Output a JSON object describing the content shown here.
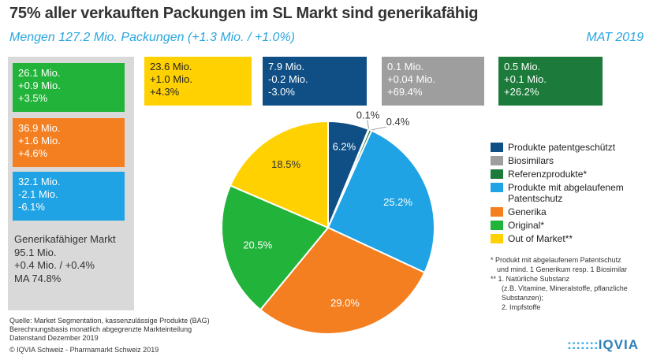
{
  "header": {
    "title": "75% aller verkauften Packungen im SL Markt sind generikafähig",
    "subtitle": "Mengen 127.2 Mio. Packungen (+1.3 Mio. / +1.0%)",
    "period": "MAT 2019"
  },
  "side_boxes": [
    {
      "lines": [
        "26.1 Mio.",
        "+0.9 Mio.",
        "+3.5%"
      ],
      "color": "#22b33a"
    },
    {
      "lines": [
        "36.9 Mio.",
        "+1.6 Mio.",
        "+4.6%"
      ],
      "color": "#f47f20"
    },
    {
      "lines": [
        "32.1 Mio.",
        "-2.1 Mio.",
        "-6.1%"
      ],
      "color": "#1fa3e4"
    }
  ],
  "generic_market": {
    "lines": [
      "Generikafähiger Markt",
      "95.1 Mio.",
      "+0.4 Mio. / +0.4%",
      "MA 74.8%"
    ]
  },
  "top_boxes": [
    {
      "lines": [
        "23.6 Mio.",
        "+1.0 Mio.",
        "+4.3%"
      ],
      "color": "#ffd100"
    },
    {
      "lines": [
        "7.9 Mio.",
        "-0.2 Mio.",
        "-3.0%"
      ],
      "color": "#0f4f85"
    },
    {
      "lines": [
        "0.1 Mio.",
        "+0.04 Mio.",
        "+69.4%"
      ],
      "color": "#9e9e9e"
    },
    {
      "lines": [
        "0.5 Mio.",
        "+0.1 Mio.",
        "+26.2%"
      ],
      "color": "#1c7a3a"
    }
  ],
  "chart_data": {
    "type": "pie",
    "slices": [
      {
        "name": "Produkte patentgeschützt",
        "value": 6.2,
        "label": "6.2%",
        "color": "#0f4f85"
      },
      {
        "name": "Biosimilars",
        "value": 0.1,
        "label": "0.1%",
        "color": "#9e9e9e"
      },
      {
        "name": "Referenzprodukte*",
        "value": 0.4,
        "label": "0.4%",
        "color": "#1c7a3a"
      },
      {
        "name": "Produkte mit abgelaufenem Patentschutz",
        "value": 25.2,
        "label": "25.2%",
        "color": "#1fa3e4"
      },
      {
        "name": "Generika",
        "value": 29.0,
        "label": "29.0%",
        "color": "#f47f20"
      },
      {
        "name": "Original*",
        "value": 20.5,
        "label": "20.5%",
        "color": "#22b33a"
      },
      {
        "name": "Out of Market**",
        "value": 18.5,
        "label": "18.5%",
        "color": "#ffd100"
      }
    ]
  },
  "legend": [
    {
      "label": "Produkte patentgeschützt",
      "color": "#0f4f85"
    },
    {
      "label": "Biosimilars",
      "color": "#9e9e9e"
    },
    {
      "label": "Referenzprodukte*",
      "color": "#1c7a3a"
    },
    {
      "label": "Produkte mit abgelaufenem Patentschutz",
      "color": "#1fa3e4"
    },
    {
      "label": "Generika",
      "color": "#f47f20"
    },
    {
      "label": "Original*",
      "color": "#22b33a"
    },
    {
      "label": "Out of Market**",
      "color": "#ffd100"
    }
  ],
  "footnotes": [
    "* Produkt mit abgelaufenem Patentschutz",
    "und mind. 1 Generikum resp. 1 Biosimilar",
    "** 1. Natürliche Substanz",
    "(z.B. Vitamine, Mineralstoffe, pflanzliche",
    "Substanzen);",
    "2. Impfstoffe"
  ],
  "source": [
    "Quelle: Market Segmentation, kassenzulässige Produkte (BAG)",
    "Berechnungsbasis monatlich abgegrenzte Markteinteilung",
    "Datenstand Dezember 2019"
  ],
  "copyright": "© IQVIA Schweiz - Pharmamarkt Schweiz 2019",
  "logo": {
    "dots": ":::::::",
    "text": "IQVIA"
  }
}
